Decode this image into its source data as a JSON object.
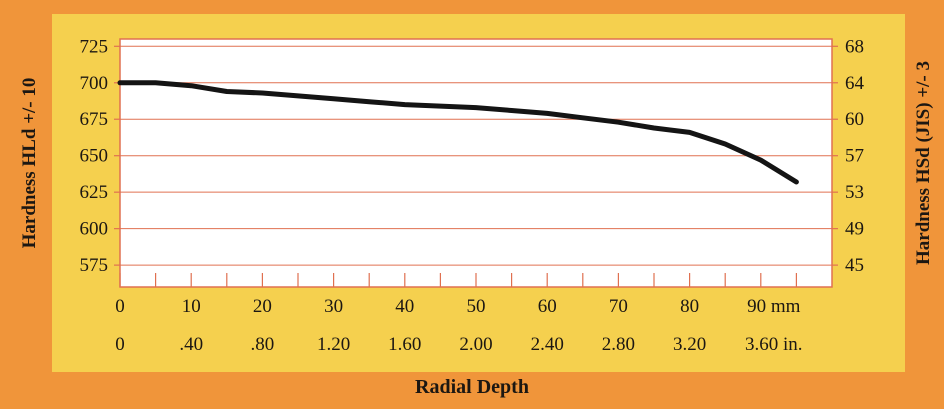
{
  "chart_data": {
    "type": "line",
    "title": "",
    "xlabel": "Radial Depth",
    "ylabel_left": "Hardness HLd +/- 10",
    "ylabel_right": "Hardness HSd (JIS) +/- 3",
    "xlim_mm": [
      0,
      100
    ],
    "ylim": [
      560,
      730
    ],
    "grid": true,
    "left_ticks": [
      "725",
      "700",
      "675",
      "650",
      "625",
      "600",
      "575"
    ],
    "left_tick_values": [
      725,
      700,
      675,
      650,
      625,
      600,
      575
    ],
    "right_ticks": [
      "68",
      "64",
      "60",
      "57",
      "53",
      "49",
      "45"
    ],
    "x_ticks_mm": [
      "0",
      "10",
      "20",
      "30",
      "40",
      "50",
      "60",
      "70",
      "80",
      "90 mm"
    ],
    "x_ticks_in": [
      "0",
      ".40",
      ".80",
      "1.20",
      "1.60",
      "2.00",
      "2.40",
      "2.80",
      "3.20",
      "3.60 in."
    ],
    "x_tick_values": [
      0,
      10,
      20,
      30,
      40,
      50,
      60,
      70,
      80,
      90
    ],
    "series": [
      {
        "name": "",
        "x": [
          0,
          5,
          10,
          15,
          20,
          25,
          30,
          35,
          40,
          45,
          50,
          55,
          60,
          65,
          70,
          75,
          80,
          85,
          90,
          95
        ],
        "y": [
          700,
          700,
          698,
          694,
          693,
          691,
          689,
          687,
          685,
          684,
          683,
          681,
          679,
          676,
          673,
          669,
          666,
          658,
          647,
          632
        ]
      }
    ],
    "colors": {
      "outer": "#f0953a",
      "inner": "#f5d04e",
      "plot": "#ffffff",
      "grid": "#e07050",
      "line": "#141414",
      "text": "#1c1712"
    }
  }
}
